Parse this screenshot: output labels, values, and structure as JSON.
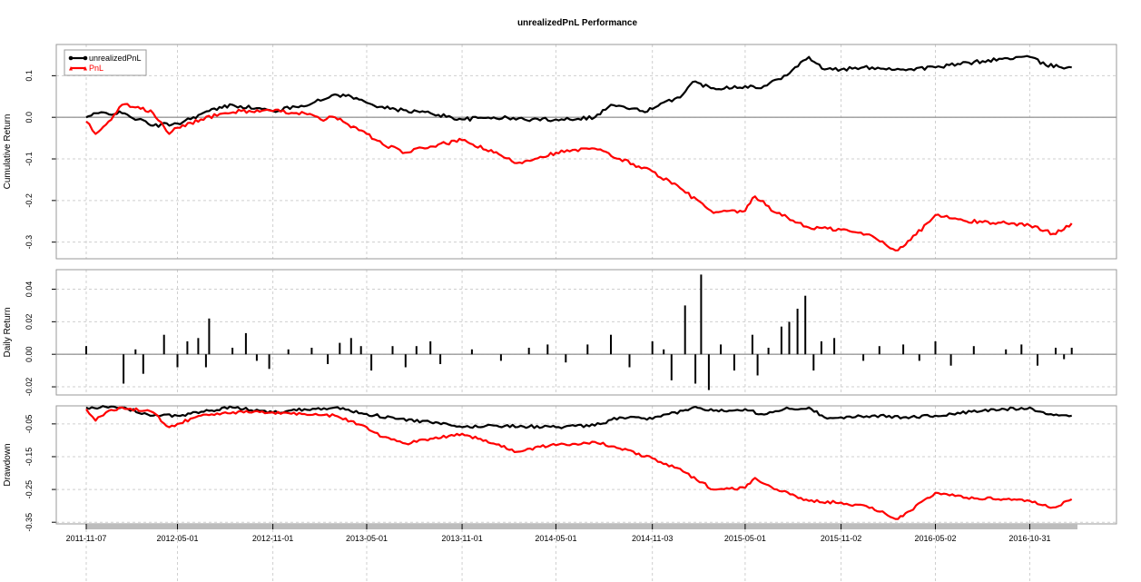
{
  "chart_data": [
    {
      "type": "line",
      "title": "unrealizedPnL Performance",
      "ylabel": "Cumulative Return",
      "ylim": [
        -0.34,
        0.175
      ],
      "yticks": [
        -0.3,
        -0.2,
        -0.1,
        0.0,
        0.1
      ],
      "ytick_labels": [
        "-0.3",
        "-0.2",
        "-0.1",
        "0.0",
        "0.1"
      ],
      "legend_position": "top-left",
      "grid": true,
      "series": [
        {
          "name": "unrealizedPnL",
          "color": "#000000",
          "points": [
            [
              "2011-11-07",
              0.0
            ],
            [
              "2011-12-01",
              0.01
            ],
            [
              "2012-01-15",
              0.01
            ],
            [
              "2012-02-15",
              -0.005
            ],
            [
              "2012-03-15",
              -0.02
            ],
            [
              "2012-05-01",
              -0.015
            ],
            [
              "2012-07-01",
              0.015
            ],
            [
              "2012-08-15",
              0.03
            ],
            [
              "2012-11-01",
              0.015
            ],
            [
              "2012-12-15",
              0.025
            ],
            [
              "2013-02-01",
              0.04
            ],
            [
              "2013-03-01",
              0.055
            ],
            [
              "2013-04-01",
              0.05
            ],
            [
              "2013-05-01",
              0.035
            ],
            [
              "2013-06-15",
              0.02
            ],
            [
              "2013-09-01",
              0.01
            ],
            [
              "2013-11-01",
              -0.005
            ],
            [
              "2014-01-01",
              0.0
            ],
            [
              "2014-03-01",
              -0.005
            ],
            [
              "2014-05-01",
              -0.005
            ],
            [
              "2014-07-15",
              0.0
            ],
            [
              "2014-08-15",
              0.03
            ],
            [
              "2014-10-15",
              0.015
            ],
            [
              "2014-11-03",
              0.02
            ],
            [
              "2015-01-01",
              0.055
            ],
            [
              "2015-01-20",
              0.085
            ],
            [
              "2015-03-01",
              0.07
            ],
            [
              "2015-05-01",
              0.075
            ],
            [
              "2015-06-01",
              0.07
            ],
            [
              "2015-07-15",
              0.1
            ],
            [
              "2015-09-01",
              0.145
            ],
            [
              "2015-10-01",
              0.115
            ],
            [
              "2015-11-02",
              0.115
            ],
            [
              "2016-01-01",
              0.12
            ],
            [
              "2016-03-01",
              0.115
            ],
            [
              "2016-05-02",
              0.12
            ],
            [
              "2016-08-01",
              0.135
            ],
            [
              "2016-10-15",
              0.145
            ],
            [
              "2016-10-31",
              0.145
            ],
            [
              "2016-12-01",
              0.125
            ],
            [
              "2017-01-20",
              0.12
            ]
          ]
        },
        {
          "name": "PnL",
          "color": "#ff0000",
          "points": [
            [
              "2011-11-07",
              -0.01
            ],
            [
              "2011-11-25",
              -0.04
            ],
            [
              "2011-12-20",
              -0.01
            ],
            [
              "2012-01-15",
              0.03
            ],
            [
              "2012-02-15",
              0.025
            ],
            [
              "2012-03-15",
              0.01
            ],
            [
              "2012-04-15",
              -0.04
            ],
            [
              "2012-05-01",
              -0.025
            ],
            [
              "2012-06-15",
              -0.005
            ],
            [
              "2012-08-01",
              0.01
            ],
            [
              "2012-09-01",
              0.015
            ],
            [
              "2012-11-01",
              0.015
            ],
            [
              "2013-01-01",
              0.01
            ],
            [
              "2013-02-01",
              -0.005
            ],
            [
              "2013-03-01",
              0.0
            ],
            [
              "2013-05-01",
              -0.04
            ],
            [
              "2013-06-01",
              -0.065
            ],
            [
              "2013-07-15",
              -0.085
            ],
            [
              "2013-09-01",
              -0.07
            ],
            [
              "2013-11-01",
              -0.055
            ],
            [
              "2014-01-01",
              -0.085
            ],
            [
              "2014-02-15",
              -0.11
            ],
            [
              "2014-04-01",
              -0.095
            ],
            [
              "2014-05-01",
              -0.085
            ],
            [
              "2014-07-15",
              -0.075
            ],
            [
              "2014-09-01",
              -0.1
            ],
            [
              "2014-11-03",
              -0.13
            ],
            [
              "2015-01-01",
              -0.175
            ],
            [
              "2015-03-01",
              -0.23
            ],
            [
              "2015-05-01",
              -0.225
            ],
            [
              "2015-05-20",
              -0.19
            ],
            [
              "2015-07-01",
              -0.23
            ],
            [
              "2015-09-01",
              -0.265
            ],
            [
              "2015-11-02",
              -0.27
            ],
            [
              "2016-01-01",
              -0.285
            ],
            [
              "2016-02-15",
              -0.32
            ],
            [
              "2016-03-15",
              -0.295
            ],
            [
              "2016-05-02",
              -0.235
            ],
            [
              "2016-07-01",
              -0.25
            ],
            [
              "2016-10-01",
              -0.255
            ],
            [
              "2016-10-31",
              -0.26
            ],
            [
              "2016-12-15",
              -0.28
            ],
            [
              "2017-01-20",
              -0.255
            ]
          ]
        }
      ]
    },
    {
      "type": "bar",
      "ylabel": "Daily Return",
      "ylim": [
        -0.025,
        0.052
      ],
      "yticks": [
        -0.02,
        0.0,
        0.02,
        0.04
      ],
      "ytick_labels": [
        "-0.02",
        "0.00",
        "0.02",
        "0.04"
      ],
      "grid": true,
      "color": "#000000",
      "points": [
        [
          "2011-11-07",
          0.005
        ],
        [
          "2012-01-18",
          -0.018
        ],
        [
          "2012-02-10",
          0.003
        ],
        [
          "2012-02-25",
          -0.012
        ],
        [
          "2012-04-05",
          0.012
        ],
        [
          "2012-05-01",
          -0.008
        ],
        [
          "2012-05-20",
          0.008
        ],
        [
          "2012-06-10",
          0.01
        ],
        [
          "2012-06-25",
          -0.008
        ],
        [
          "2012-07-01",
          0.022
        ],
        [
          "2012-08-15",
          0.004
        ],
        [
          "2012-09-10",
          0.013
        ],
        [
          "2012-10-01",
          -0.004
        ],
        [
          "2012-10-25",
          -0.009
        ],
        [
          "2012-12-01",
          0.003
        ],
        [
          "2013-01-15",
          0.004
        ],
        [
          "2013-02-15",
          -0.006
        ],
        [
          "2013-03-10",
          0.007
        ],
        [
          "2013-04-01",
          0.01
        ],
        [
          "2013-04-20",
          0.005
        ],
        [
          "2013-05-10",
          -0.01
        ],
        [
          "2013-06-20",
          0.005
        ],
        [
          "2013-07-15",
          -0.008
        ],
        [
          "2013-08-05",
          0.005
        ],
        [
          "2013-09-01",
          0.008
        ],
        [
          "2013-09-20",
          -0.006
        ],
        [
          "2013-11-20",
          0.003
        ],
        [
          "2014-01-15",
          -0.004
        ],
        [
          "2014-03-10",
          0.004
        ],
        [
          "2014-04-15",
          0.006
        ],
        [
          "2014-05-20",
          -0.005
        ],
        [
          "2014-07-01",
          0.006
        ],
        [
          "2014-08-15",
          0.012
        ],
        [
          "2014-09-20",
          -0.008
        ],
        [
          "2014-11-03",
          0.008
        ],
        [
          "2014-11-25",
          0.003
        ],
        [
          "2014-12-10",
          -0.016
        ],
        [
          "2015-01-05",
          0.03
        ],
        [
          "2015-01-25",
          -0.018
        ],
        [
          "2015-02-05",
          0.049
        ],
        [
          "2015-02-20",
          -0.022
        ],
        [
          "2015-03-15",
          0.006
        ],
        [
          "2015-04-10",
          -0.01
        ],
        [
          "2015-05-15",
          0.012
        ],
        [
          "2015-05-25",
          -0.013
        ],
        [
          "2015-06-15",
          0.004
        ],
        [
          "2015-07-10",
          0.017
        ],
        [
          "2015-07-25",
          0.02
        ],
        [
          "2015-08-10",
          0.028
        ],
        [
          "2015-08-25",
          0.036
        ],
        [
          "2015-09-10",
          -0.01
        ],
        [
          "2015-09-25",
          0.008
        ],
        [
          "2015-10-20",
          0.01
        ],
        [
          "2015-12-15",
          -0.004
        ],
        [
          "2016-01-15",
          0.005
        ],
        [
          "2016-03-01",
          0.006
        ],
        [
          "2016-04-01",
          -0.004
        ],
        [
          "2016-05-02",
          0.008
        ],
        [
          "2016-06-01",
          -0.007
        ],
        [
          "2016-07-15",
          0.005
        ],
        [
          "2016-09-15",
          0.003
        ],
        [
          "2016-10-15",
          0.006
        ],
        [
          "2016-11-15",
          -0.007
        ],
        [
          "2016-12-20",
          0.004
        ],
        [
          "2017-01-05",
          -0.003
        ],
        [
          "2017-01-20",
          0.004
        ]
      ]
    },
    {
      "type": "line",
      "ylabel": "Drawdown",
      "ylim": [
        -0.355,
        0.005
      ],
      "yticks": [
        -0.35,
        -0.25,
        -0.15,
        -0.05
      ],
      "ytick_labels": [
        "-0.35",
        "-0.25",
        "-0.15",
        "-0.05"
      ],
      "grid": true,
      "series": [
        {
          "name": "unrealizedPnL",
          "color": "#000000",
          "points": [
            [
              "2011-11-07",
              0.0
            ],
            [
              "2012-01-15",
              0.0
            ],
            [
              "2012-03-15",
              -0.025
            ],
            [
              "2012-05-01",
              -0.025
            ],
            [
              "2012-07-01",
              -0.01
            ],
            [
              "2012-08-15",
              0.0
            ],
            [
              "2012-11-01",
              -0.015
            ],
            [
              "2013-01-01",
              -0.005
            ],
            [
              "2013-03-01",
              0.0
            ],
            [
              "2013-05-01",
              -0.02
            ],
            [
              "2013-07-01",
              -0.035
            ],
            [
              "2013-09-01",
              -0.045
            ],
            [
              "2013-11-01",
              -0.06
            ],
            [
              "2014-01-01",
              -0.055
            ],
            [
              "2014-05-01",
              -0.06
            ],
            [
              "2014-07-15",
              -0.055
            ],
            [
              "2014-09-01",
              -0.03
            ],
            [
              "2014-11-03",
              -0.035
            ],
            [
              "2015-01-01",
              -0.01
            ],
            [
              "2015-01-20",
              0.0
            ],
            [
              "2015-03-01",
              -0.01
            ],
            [
              "2015-05-01",
              -0.005
            ],
            [
              "2015-06-01",
              -0.02
            ],
            [
              "2015-07-15",
              -0.005
            ],
            [
              "2015-09-01",
              0.0
            ],
            [
              "2015-10-01",
              -0.03
            ],
            [
              "2015-11-02",
              -0.03
            ],
            [
              "2016-01-01",
              -0.025
            ],
            [
              "2016-03-01",
              -0.03
            ],
            [
              "2016-05-02",
              -0.025
            ],
            [
              "2016-08-01",
              -0.01
            ],
            [
              "2016-10-31",
              0.0
            ],
            [
              "2016-12-01",
              -0.02
            ],
            [
              "2017-01-20",
              -0.025
            ]
          ]
        },
        {
          "name": "PnL",
          "color": "#ff0000",
          "points": [
            [
              "2011-11-07",
              -0.005
            ],
            [
              "2011-11-25",
              -0.04
            ],
            [
              "2011-12-20",
              -0.01
            ],
            [
              "2012-01-15",
              0.0
            ],
            [
              "2012-03-15",
              -0.015
            ],
            [
              "2012-04-15",
              -0.06
            ],
            [
              "2012-05-01",
              -0.05
            ],
            [
              "2012-06-15",
              -0.025
            ],
            [
              "2012-08-01",
              -0.015
            ],
            [
              "2012-11-01",
              -0.015
            ],
            [
              "2013-01-01",
              -0.02
            ],
            [
              "2013-03-01",
              -0.025
            ],
            [
              "2013-05-01",
              -0.06
            ],
            [
              "2013-06-01",
              -0.09
            ],
            [
              "2013-07-15",
              -0.11
            ],
            [
              "2013-09-01",
              -0.095
            ],
            [
              "2013-11-01",
              -0.08
            ],
            [
              "2014-01-01",
              -0.11
            ],
            [
              "2014-02-15",
              -0.135
            ],
            [
              "2014-04-01",
              -0.12
            ],
            [
              "2014-05-01",
              -0.115
            ],
            [
              "2014-07-15",
              -0.105
            ],
            [
              "2014-09-01",
              -0.125
            ],
            [
              "2014-11-03",
              -0.155
            ],
            [
              "2015-01-01",
              -0.195
            ],
            [
              "2015-03-01",
              -0.25
            ],
            [
              "2015-05-01",
              -0.245
            ],
            [
              "2015-05-20",
              -0.215
            ],
            [
              "2015-07-01",
              -0.25
            ],
            [
              "2015-09-01",
              -0.285
            ],
            [
              "2015-11-02",
              -0.29
            ],
            [
              "2016-01-01",
              -0.305
            ],
            [
              "2016-02-15",
              -0.34
            ],
            [
              "2016-03-15",
              -0.315
            ],
            [
              "2016-05-02",
              -0.26
            ],
            [
              "2016-07-01",
              -0.275
            ],
            [
              "2016-10-01",
              -0.28
            ],
            [
              "2016-10-31",
              -0.285
            ],
            [
              "2016-12-15",
              -0.305
            ],
            [
              "2017-01-20",
              -0.28
            ]
          ]
        }
      ]
    }
  ],
  "x_axis": {
    "type": "date",
    "range": [
      "2011-11-07",
      "2017-01-31"
    ],
    "ticks": [
      "2011-11-07",
      "2012-05-01",
      "2012-11-01",
      "2013-05-01",
      "2013-11-01",
      "2014-05-01",
      "2014-11-03",
      "2015-05-01",
      "2015-11-02",
      "2016-05-02",
      "2016-10-31"
    ]
  },
  "legend": [
    {
      "label": "unrealizedPnL",
      "color": "#000000"
    },
    {
      "label": "PnL",
      "color": "#ff0000"
    }
  ]
}
